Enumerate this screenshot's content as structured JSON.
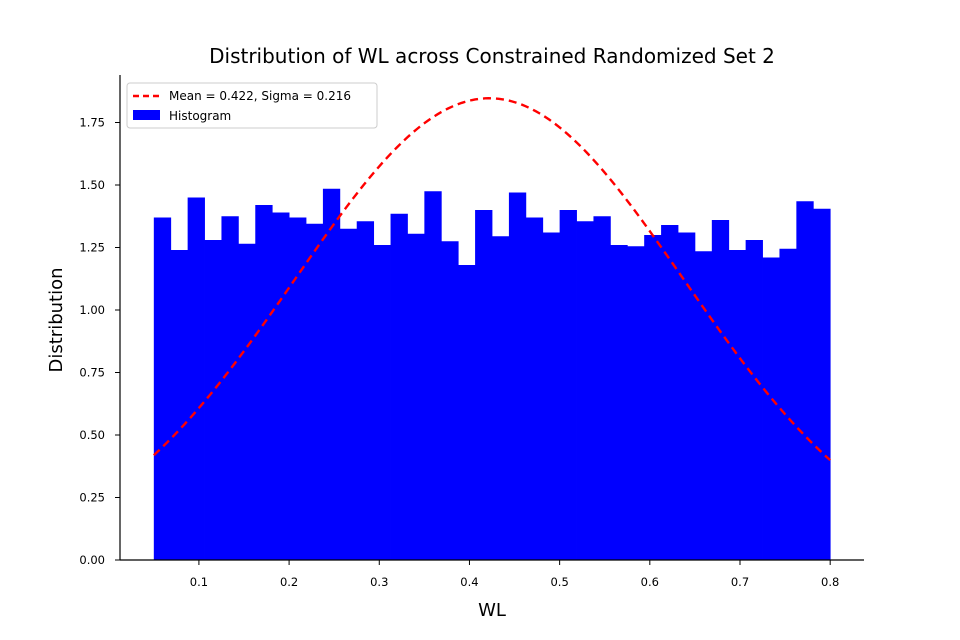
{
  "chart_data": {
    "type": "bar",
    "title": "Distribution of WL across Constrained Randomized Set 2",
    "xlabel": "WL",
    "ylabel": "Distribution",
    "xlim": [
      0.0125,
      0.8375
    ],
    "ylim": [
      0,
      1.94
    ],
    "xticks": [
      0.1,
      0.2,
      0.3,
      0.4,
      0.5,
      0.6,
      0.7,
      0.8
    ],
    "xtick_labels": [
      "0.1",
      "0.2",
      "0.3",
      "0.4",
      "0.5",
      "0.6",
      "0.7",
      "0.8"
    ],
    "yticks": [
      0.0,
      0.25,
      0.5,
      0.75,
      1.0,
      1.25,
      1.5,
      1.75
    ],
    "ytick_labels": [
      "0.00",
      "0.25",
      "0.50",
      "0.75",
      "1.00",
      "1.25",
      "1.50",
      "1.75"
    ],
    "grid": false,
    "legend_position": "top-left",
    "series": [
      {
        "name": "Mean = 0.422, Sigma = 0.216",
        "kind": "line",
        "style": "dashed",
        "color": "#ff0000",
        "mean": 0.422,
        "sigma": 0.216,
        "x_range": [
          0.05,
          0.8
        ]
      },
      {
        "name": "Histogram",
        "kind": "bar",
        "color": "#0000ff",
        "bin_start": 0.05,
        "bin_width": 0.01875,
        "values": [
          1.37,
          1.24,
          1.45,
          1.28,
          1.375,
          1.265,
          1.42,
          1.39,
          1.37,
          1.345,
          1.485,
          1.325,
          1.355,
          1.26,
          1.385,
          1.305,
          1.475,
          1.275,
          1.18,
          1.4,
          1.295,
          1.47,
          1.37,
          1.31,
          1.4,
          1.355,
          1.375,
          1.26,
          1.255,
          1.3,
          1.34,
          1.31,
          1.235,
          1.36,
          1.24,
          1.28,
          1.21,
          1.245,
          1.435,
          1.405
        ]
      }
    ]
  }
}
